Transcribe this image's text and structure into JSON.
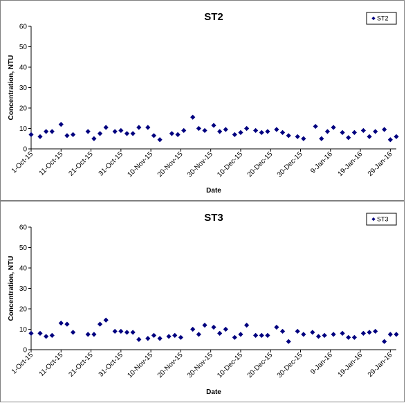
{
  "chart_data": [
    {
      "type": "scatter",
      "title": "ST2",
      "xlabel": "Date",
      "ylabel": "Concentration, NTU",
      "ylim": [
        0,
        60
      ],
      "yticks": [
        "0",
        "10",
        "20",
        "30",
        "40",
        "50",
        "60"
      ],
      "xlim": [
        "2015-10-01",
        "2016-01-31"
      ],
      "xticks": [
        "1-Oct-15",
        "11-Oct-15",
        "21-Oct-15",
        "31-Oct-15",
        "10-Nov-15",
        "20-Nov-15",
        "30-Nov-15",
        "10-Dec-15",
        "20-Dec-15",
        "30-Dec-15",
        "9-Jan-16",
        "19-Jan-16",
        "29-Jan-16"
      ],
      "grid": false,
      "legend": "top-right",
      "marker_color": "#00007f",
      "series": [
        {
          "name": "ST2",
          "points": [
            [
              "2015-10-01",
              7
            ],
            [
              "2015-10-04",
              6
            ],
            [
              "2015-10-06",
              8.5
            ],
            [
              "2015-10-08",
              8.5
            ],
            [
              "2015-10-11",
              12
            ],
            [
              "2015-10-13",
              6.5
            ],
            [
              "2015-10-15",
              7
            ],
            [
              "2015-10-20",
              8.5
            ],
            [
              "2015-10-22",
              5
            ],
            [
              "2015-10-24",
              7.5
            ],
            [
              "2015-10-26",
              10.5
            ],
            [
              "2015-10-29",
              8.5
            ],
            [
              "2015-10-31",
              9
            ],
            [
              "2015-11-02",
              7.5
            ],
            [
              "2015-11-04",
              7.5
            ],
            [
              "2015-11-06",
              10.5
            ],
            [
              "2015-11-09",
              10.5
            ],
            [
              "2015-11-11",
              6.5
            ],
            [
              "2015-11-13",
              4.5
            ],
            [
              "2015-11-17",
              7.5
            ],
            [
              "2015-11-19",
              7
            ],
            [
              "2015-11-21",
              9
            ],
            [
              "2015-11-24",
              15.5
            ],
            [
              "2015-11-26",
              10
            ],
            [
              "2015-11-28",
              9
            ],
            [
              "2015-12-01",
              11.5
            ],
            [
              "2015-12-03",
              8.5
            ],
            [
              "2015-12-05",
              9.5
            ],
            [
              "2015-12-08",
              7
            ],
            [
              "2015-12-10",
              8
            ],
            [
              "2015-12-12",
              10
            ],
            [
              "2015-12-15",
              9
            ],
            [
              "2015-12-17",
              8
            ],
            [
              "2015-12-19",
              8.5
            ],
            [
              "2015-12-22",
              9.5
            ],
            [
              "2015-12-24",
              8
            ],
            [
              "2015-12-26",
              6.5
            ],
            [
              "2015-12-29",
              6
            ],
            [
              "2015-12-31",
              5
            ],
            [
              "2016-01-04",
              11
            ],
            [
              "2016-01-06",
              5
            ],
            [
              "2016-01-08",
              8.5
            ],
            [
              "2016-01-10",
              10.5
            ],
            [
              "2016-01-13",
              8
            ],
            [
              "2016-01-15",
              5.5
            ],
            [
              "2016-01-17",
              8
            ],
            [
              "2016-01-20",
              9
            ],
            [
              "2016-01-22",
              6
            ],
            [
              "2016-01-24",
              8.5
            ],
            [
              "2016-01-27",
              9.5
            ],
            [
              "2016-01-29",
              4.5
            ],
            [
              "2016-01-31",
              6
            ]
          ]
        }
      ]
    },
    {
      "type": "scatter",
      "title": "ST3",
      "xlabel": "Date",
      "ylabel": "Concentration, NTU",
      "ylim": [
        0,
        60
      ],
      "yticks": [
        "0",
        "10",
        "20",
        "30",
        "40",
        "50",
        "60"
      ],
      "xlim": [
        "2015-10-01",
        "2016-01-31"
      ],
      "xticks": [
        "1-Oct-15",
        "11-Oct-15",
        "21-Oct-15",
        "31-Oct-15",
        "10-Nov-15",
        "20-Nov-15",
        "30-Nov-15",
        "10-Dec-15",
        "20-Dec-15",
        "30-Dec-15",
        "9-Jan-16",
        "19-Jan-16",
        "29-Jan-16"
      ],
      "grid": false,
      "legend": "top-right",
      "marker_color": "#00007f",
      "series": [
        {
          "name": "ST3",
          "points": [
            [
              "2015-10-01",
              8
            ],
            [
              "2015-10-04",
              8
            ],
            [
              "2015-10-06",
              6.5
            ],
            [
              "2015-10-08",
              7
            ],
            [
              "2015-10-11",
              13
            ],
            [
              "2015-10-13",
              12.5
            ],
            [
              "2015-10-15",
              8.5
            ],
            [
              "2015-10-20",
              7.5
            ],
            [
              "2015-10-22",
              7.5
            ],
            [
              "2015-10-24",
              12.5
            ],
            [
              "2015-10-26",
              14.5
            ],
            [
              "2015-10-29",
              9
            ],
            [
              "2015-10-31",
              9
            ],
            [
              "2015-11-02",
              8.5
            ],
            [
              "2015-11-04",
              8.5
            ],
            [
              "2015-11-06",
              5
            ],
            [
              "2015-11-09",
              5.5
            ],
            [
              "2015-11-11",
              7
            ],
            [
              "2015-11-13",
              5.5
            ],
            [
              "2015-11-16",
              6.5
            ],
            [
              "2015-11-18",
              7
            ],
            [
              "2015-11-20",
              6
            ],
            [
              "2015-11-24",
              10
            ],
            [
              "2015-11-26",
              7.5
            ],
            [
              "2015-11-28",
              12
            ],
            [
              "2015-12-01",
              11
            ],
            [
              "2015-12-03",
              8
            ],
            [
              "2015-12-05",
              10
            ],
            [
              "2015-12-08",
              6
            ],
            [
              "2015-12-10",
              7.5
            ],
            [
              "2015-12-12",
              12
            ],
            [
              "2015-12-15",
              7
            ],
            [
              "2015-12-17",
              7
            ],
            [
              "2015-12-19",
              7
            ],
            [
              "2015-12-22",
              11
            ],
            [
              "2015-12-24",
              9
            ],
            [
              "2015-12-26",
              4
            ],
            [
              "2015-12-29",
              9
            ],
            [
              "2015-12-31",
              7.5
            ],
            [
              "2016-01-03",
              8.5
            ],
            [
              "2016-01-05",
              6.5
            ],
            [
              "2016-01-07",
              7
            ],
            [
              "2016-01-10",
              7.5
            ],
            [
              "2016-01-13",
              8
            ],
            [
              "2016-01-15",
              6
            ],
            [
              "2016-01-17",
              6
            ],
            [
              "2016-01-20",
              8
            ],
            [
              "2016-01-22",
              8.5
            ],
            [
              "2016-01-24",
              9
            ],
            [
              "2016-01-27",
              4
            ],
            [
              "2016-01-29",
              7.5
            ],
            [
              "2016-01-31",
              7.5
            ]
          ]
        }
      ]
    }
  ]
}
